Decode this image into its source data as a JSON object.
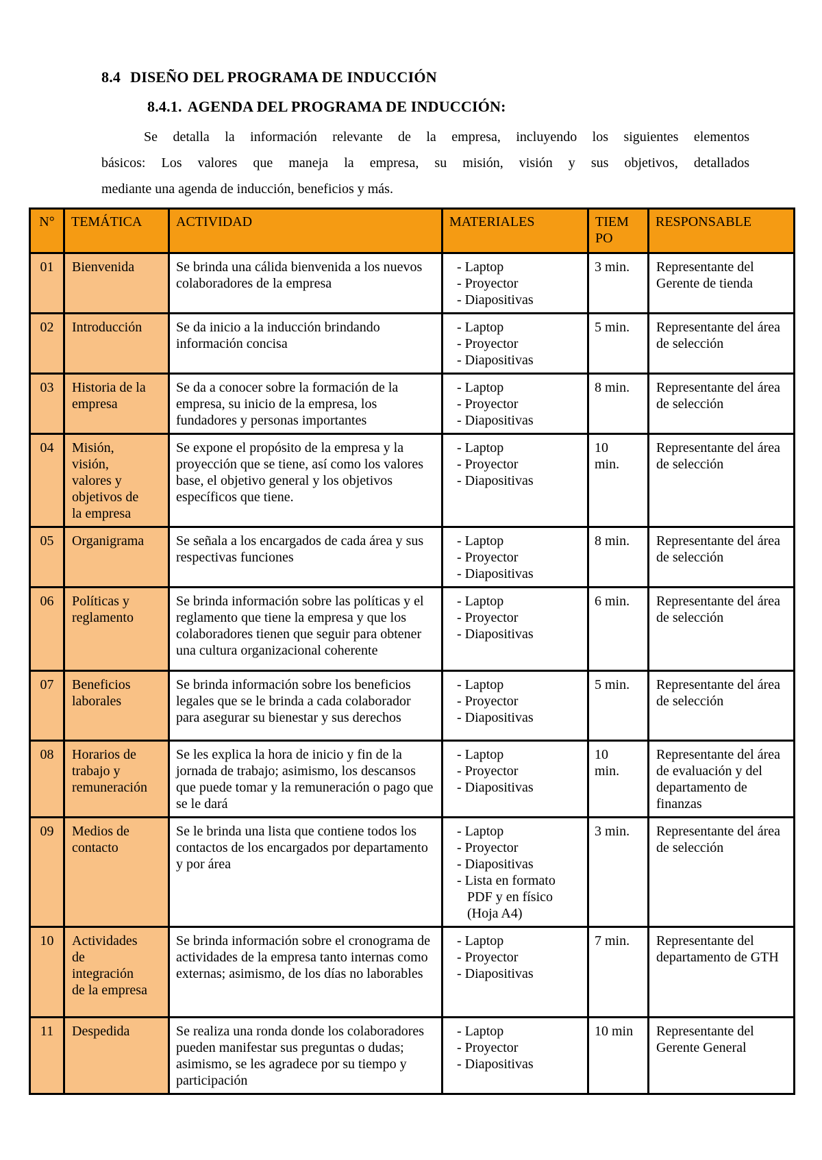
{
  "page": {
    "heading1": {
      "num": "8.4",
      "text": "DISEÑO DEL PROGRAMA DE INDUCCIÓN"
    },
    "heading2": {
      "num": "8.4.1.",
      "text": "AGENDA DEL PROGRAMA DE INDUCCIÓN:"
    },
    "intro_lines": [
      "Se detalla la información relevante de la empresa, incluyendo los siguientes elementos",
      "básicos: Los valores que maneja la empresa, su misión, visión y sus objetivos, detallados",
      "mediante una agenda de inducción, beneficios y más."
    ]
  },
  "colors": {
    "header_bg": "#F59B13",
    "label_bg": "#F9C185",
    "border": "#000000",
    "text": "#000000"
  },
  "table": {
    "headers": {
      "num": "N°",
      "tematica": "TEMÁTICA",
      "actividad": "ACTIVIDAD",
      "materiales": "MATERIALES",
      "tiempo": "TIEM\nPO",
      "responsable": "RESPONSABLE"
    },
    "rows": [
      {
        "num": "01",
        "tematica": "Bienvenida",
        "actividad": "Se brinda una cálida bienvenida a los nuevos colaboradores de la empresa",
        "materiales": [
          "- Laptop",
          "- Proyector",
          "- Diapositivas"
        ],
        "tiempo": "3 min.",
        "responsable": "Representante del Gerente de tienda"
      },
      {
        "num": "02",
        "tematica": "Introducción",
        "actividad": "Se da inicio a la inducción brindando información concisa",
        "materiales": [
          "- Laptop",
          "- Proyector",
          "- Diapositivas"
        ],
        "tiempo": "5 min.",
        "responsable": "Representante del área de selección"
      },
      {
        "num": "03",
        "tematica": "Historia de la empresa",
        "actividad": "Se da a conocer sobre la formación de la empresa, su inicio de la empresa, los fundadores y personas importantes",
        "materiales": [
          "- Laptop",
          "- Proyector",
          "- Diapositivas"
        ],
        "tiempo": "8 min.",
        "responsable": "Representante del área de selección"
      },
      {
        "num": "04",
        "tematica": "Misión, visión, valores y objetivos de la empresa",
        "actividad": "Se expone el propósito de la empresa y la proyección que se tiene, así como los valores base, el objetivo general y los objetivos específicos que tiene.",
        "materiales": [
          "- Laptop",
          "- Proyector",
          "- Diapositivas"
        ],
        "tiempo": "10\nmin.",
        "responsable": "Representante del área de selección"
      },
      {
        "num": "05",
        "tematica": "Organigrama",
        "actividad": "Se señala a los encargados de cada área y sus respectivas funciones",
        "materiales": [
          "- Laptop",
          "- Proyector",
          "- Diapositivas"
        ],
        "tiempo": "8 min.",
        "responsable": "Representante del área de selección"
      },
      {
        "num": "06",
        "tematica": "Políticas y reglamento",
        "actividad": "Se brinda información sobre las políticas y el reglamento que tiene la empresa y que los colaboradores tienen que seguir para obtener una cultura organizacional coherente",
        "materiales": [
          "- Laptop",
          "- Proyector",
          "- Diapositivas"
        ],
        "tiempo": "6 min.",
        "responsable": "Representante del área de selección"
      },
      {
        "num": "07",
        "tematica": "Beneficios laborales",
        "actividad": "Se brinda información sobre los beneficios legales que se le brinda a cada colaborador para asegurar su bienestar y sus derechos",
        "materiales": [
          "- Laptop",
          "- Proyector",
          "- Diapositivas"
        ],
        "tiempo": "5 min.",
        "responsable": "Representante del área de selección"
      },
      {
        "num": "08",
        "tematica": "Horarios de trabajo y remuneración",
        "actividad": "Se les explica la hora de inicio y fin de la jornada de trabajo; asimismo, los descansos que puede tomar y la remuneración o pago que se le dará",
        "materiales": [
          "- Laptop",
          "- Proyector",
          "- Diapositivas"
        ],
        "tiempo": "10\nmin.",
        "responsable": "Representante del área de evaluación y del departamento de finanzas"
      },
      {
        "num": "09",
        "tematica": "Medios de contacto",
        "actividad": "Se le brinda una lista que contiene todos los contactos de los encargados por departamento y por área",
        "materiales": [
          "- Laptop",
          "- Proyector",
          "- Diapositivas",
          "- Lista en formato PDF y en físico (Hoja A4)"
        ],
        "tiempo": "3 min.",
        "responsable": "Representante del área de selección"
      },
      {
        "num": "10",
        "tematica": "Actividades de integración de la empresa",
        "actividad": "Se brinda información sobre el cronograma de actividades de la empresa tanto internas como externas; asimismo, de los días no laborables",
        "materiales": [
          "- Laptop",
          "- Proyector",
          "- Diapositivas"
        ],
        "tiempo": "7 min.",
        "responsable": "Representante del departamento de GTH"
      },
      {
        "num": "11",
        "tematica": "Despedida",
        "actividad": "Se realiza una ronda donde los colaboradores pueden manifestar sus preguntas o dudas; asimismo, se les agradece por su tiempo y participación",
        "materiales": [
          "- Laptop",
          "- Proyector",
          "- Diapositivas"
        ],
        "tiempo": "10 min",
        "responsable": "Representante del Gerente General"
      }
    ]
  }
}
